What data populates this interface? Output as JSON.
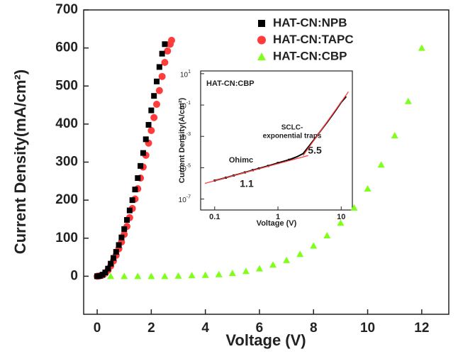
{
  "chart_data": [
    {
      "type": "scatter",
      "x_label": "Voltage (V)",
      "y_label": "Current Density(mA/cm²)",
      "xlim": [
        -0.5,
        13
      ],
      "ylim": [
        -100,
        700
      ],
      "xticks": [
        0,
        2,
        4,
        6,
        8,
        10,
        12
      ],
      "yticks": [
        0,
        100,
        200,
        300,
        400,
        500,
        600,
        700
      ],
      "legend": "upper-right",
      "series": [
        {
          "name": "HAT-CN:NPB",
          "color": "#000000",
          "marker": "square",
          "x": [
            0,
            0.1,
            0.2,
            0.3,
            0.4,
            0.5,
            0.6,
            0.7,
            0.8,
            0.9,
            1.0,
            1.1,
            1.2,
            1.3,
            1.4,
            1.5,
            1.6,
            1.7,
            1.8,
            1.9,
            2.0,
            2.1,
            2.2,
            2.3,
            2.4,
            2.5
          ],
          "values": [
            0,
            1,
            4,
            10,
            20,
            33,
            48,
            64,
            82,
            102,
            124,
            148,
            173,
            200,
            228,
            258,
            290,
            324,
            360,
            398,
            436,
            474,
            512,
            550,
            585,
            610
          ]
        },
        {
          "name": "HAT-CN:TAPC",
          "color": "#ff3b3b",
          "marker": "circle",
          "x": [
            0,
            0.1,
            0.2,
            0.3,
            0.4,
            0.5,
            0.6,
            0.7,
            0.8,
            0.9,
            1.0,
            1.1,
            1.2,
            1.3,
            1.4,
            1.5,
            1.6,
            1.7,
            1.8,
            1.9,
            2.0,
            2.1,
            2.2,
            2.3,
            2.4,
            2.5,
            2.6,
            2.7,
            2.75
          ],
          "values": [
            0,
            1,
            3,
            8,
            16,
            27,
            40,
            55,
            72,
            90,
            110,
            131,
            154,
            178,
            203,
            230,
            258,
            287,
            318,
            350,
            383,
            417,
            452,
            488,
            525,
            562,
            592,
            610,
            620
          ]
        },
        {
          "name": "HAT-CN:CBP",
          "color": "#7fff1a",
          "marker": "triangle",
          "x": [
            0,
            0.5,
            1,
            1.5,
            2,
            2.5,
            3,
            3.5,
            4,
            4.5,
            5,
            5.5,
            6,
            6.5,
            7,
            7.5,
            8,
            8.5,
            9,
            9.5,
            10,
            10.5,
            11,
            11.5,
            12
          ],
          "values": [
            0,
            0,
            0,
            0,
            0,
            0,
            1,
            2,
            3,
            5,
            8,
            13,
            20,
            30,
            42,
            58,
            80,
            107,
            140,
            180,
            230,
            293,
            370,
            460,
            600
          ]
        }
      ]
    },
    {
      "type": "line",
      "title": "HAT-CN:CBP",
      "x_label": "Voltage (V)",
      "y_label": "Current Density(A/cm²)",
      "xscale": "log",
      "yscale": "log",
      "xlim": [
        0.06,
        15
      ],
      "ylim": [
        2e-08,
        15
      ],
      "xticks": [
        0.1,
        1,
        10
      ],
      "yticks": [
        {
          "value": 10,
          "label": "10",
          "sup": "1"
        },
        {
          "value": 0.1,
          "label": "10",
          "sup": "-1"
        },
        {
          "value": 0.001,
          "label": "10",
          "sup": "-3"
        },
        {
          "value": 1e-05,
          "label": "10",
          "sup": "-5"
        },
        {
          "value": 1e-07,
          "label": "10",
          "sup": "-7"
        }
      ],
      "annotations": [
        "SCLC-",
        "exponential traps",
        "Ohimc",
        "1.1",
        "5.5"
      ],
      "series": [
        {
          "color": "#000000",
          "x": [
            0.1,
            0.15,
            0.2,
            0.3,
            0.4,
            0.5,
            0.7,
            1,
            1.5,
            2,
            2.5,
            3,
            4,
            5,
            6,
            8,
            10,
            12
          ],
          "values": [
            1.5e-06,
            2.3e-06,
            3.2e-06,
            5e-06,
            7e-06,
            9e-06,
            1.3e-05,
            2e-05,
            3.2e-05,
            5e-05,
            8e-05,
            0.0002,
            0.0009,
            0.003,
            0.008,
            0.04,
            0.15,
            0.35
          ]
        },
        {
          "color": "#ff4040",
          "x": [
            0.07,
            3
          ],
          "values": [
            1e-06,
            6e-05
          ]
        },
        {
          "color": "#ff4040",
          "x": [
            2.5,
            13
          ],
          "values": [
            6e-05,
            0.7
          ]
        }
      ]
    }
  ]
}
